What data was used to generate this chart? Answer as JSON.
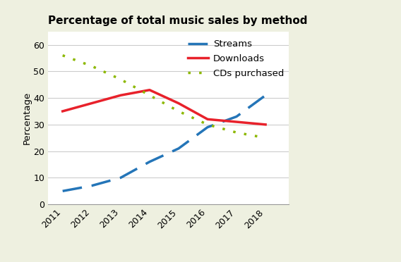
{
  "title": "Percentage of total music sales by method",
  "ylabel": "Percentage",
  "years": [
    2011,
    2012,
    2013,
    2014,
    2015,
    2016,
    2017,
    2018
  ],
  "streams": [
    5,
    7,
    10,
    16,
    21,
    29,
    33,
    41
  ],
  "downloads": [
    35,
    38,
    41,
    43,
    38,
    32,
    31,
    30
  ],
  "cds": [
    56,
    52,
    47,
    41,
    35,
    30,
    27,
    25
  ],
  "streams_color": "#2475b8",
  "downloads_color": "#e8212b",
  "cds_color": "#8cb800",
  "ylim": [
    0,
    65
  ],
  "yticks": [
    0,
    10,
    20,
    30,
    40,
    50,
    60
  ],
  "outer_bg": "#eef0e0",
  "plot_bg": "#ffffff",
  "title_fontsize": 11,
  "label_fontsize": 9.5,
  "tick_fontsize": 9,
  "legend_entries": [
    "Streams",
    "Downloads",
    "CDs purchased"
  ],
  "grid_color": "#cccccc"
}
